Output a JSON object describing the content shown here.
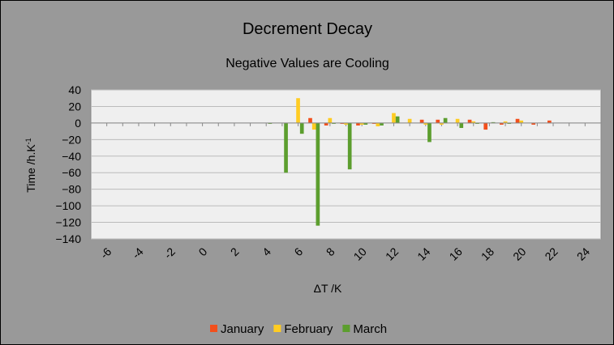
{
  "chart_data": {
    "type": "bar",
    "title": "Decrement Decay",
    "subtitle": "Negative Values are Cooling",
    "xlabel": "ΔT /K",
    "ylabel": "Time /h.K",
    "ylabel_superscript": "-1",
    "xlim": [
      -7,
      25
    ],
    "ylim": [
      -140,
      40
    ],
    "x_ticks": [
      -6,
      -4,
      -2,
      0,
      2,
      4,
      6,
      8,
      10,
      12,
      14,
      16,
      18,
      20,
      22,
      24
    ],
    "x_tick_labels": [
      "-6",
      "-4",
      "-2",
      "0",
      "2",
      "4",
      "6",
      "8",
      "10",
      "12",
      "14",
      "16",
      "18",
      "20",
      "22",
      "24"
    ],
    "y_ticks": [
      40,
      20,
      0,
      -20,
      -40,
      -60,
      -80,
      -100,
      -120,
      -140
    ],
    "y_tick_labels": [
      "40",
      "20",
      "0",
      "−20",
      "−40",
      "−60",
      "−80",
      "−100",
      "−120",
      "−140"
    ],
    "grid": true,
    "legend_position": "bottom",
    "x": [
      -7,
      -6,
      -5,
      -4,
      -3,
      -2,
      -1,
      0,
      1,
      2,
      3,
      4,
      5,
      6,
      7,
      8,
      9,
      10,
      11,
      12,
      13,
      14,
      15,
      16,
      17,
      18,
      19,
      20,
      21,
      22,
      23,
      24
    ],
    "series": [
      {
        "name": "January",
        "color": "#F24F1C",
        "values": [
          0,
          0,
          0,
          0,
          0,
          0,
          0,
          0,
          0,
          0,
          0,
          0,
          0,
          0,
          6,
          -3,
          -1,
          -3,
          -1,
          0,
          0,
          4,
          4,
          0,
          4,
          -8,
          -2,
          5,
          -2,
          3,
          0,
          0
        ]
      },
      {
        "name": "February",
        "color": "#FFCC22",
        "values": [
          0,
          0,
          0,
          0,
          0,
          0,
          0,
          0,
          0,
          0,
          0,
          0,
          0,
          30,
          -8,
          6,
          -2,
          -2,
          -4,
          12,
          5,
          -2,
          -2,
          5,
          2,
          0,
          2,
          3,
          0,
          0,
          0,
          0
        ]
      },
      {
        "name": "March",
        "color": "#5C9E2E",
        "values": [
          0,
          0,
          0,
          0,
          0,
          0,
          0,
          0,
          0,
          0,
          0,
          -1,
          -60,
          -13,
          -124,
          -1,
          -56,
          -2,
          -3,
          8,
          0,
          -23,
          6,
          -6,
          -1,
          1,
          -1,
          0,
          0,
          0,
          0,
          0
        ]
      }
    ]
  }
}
